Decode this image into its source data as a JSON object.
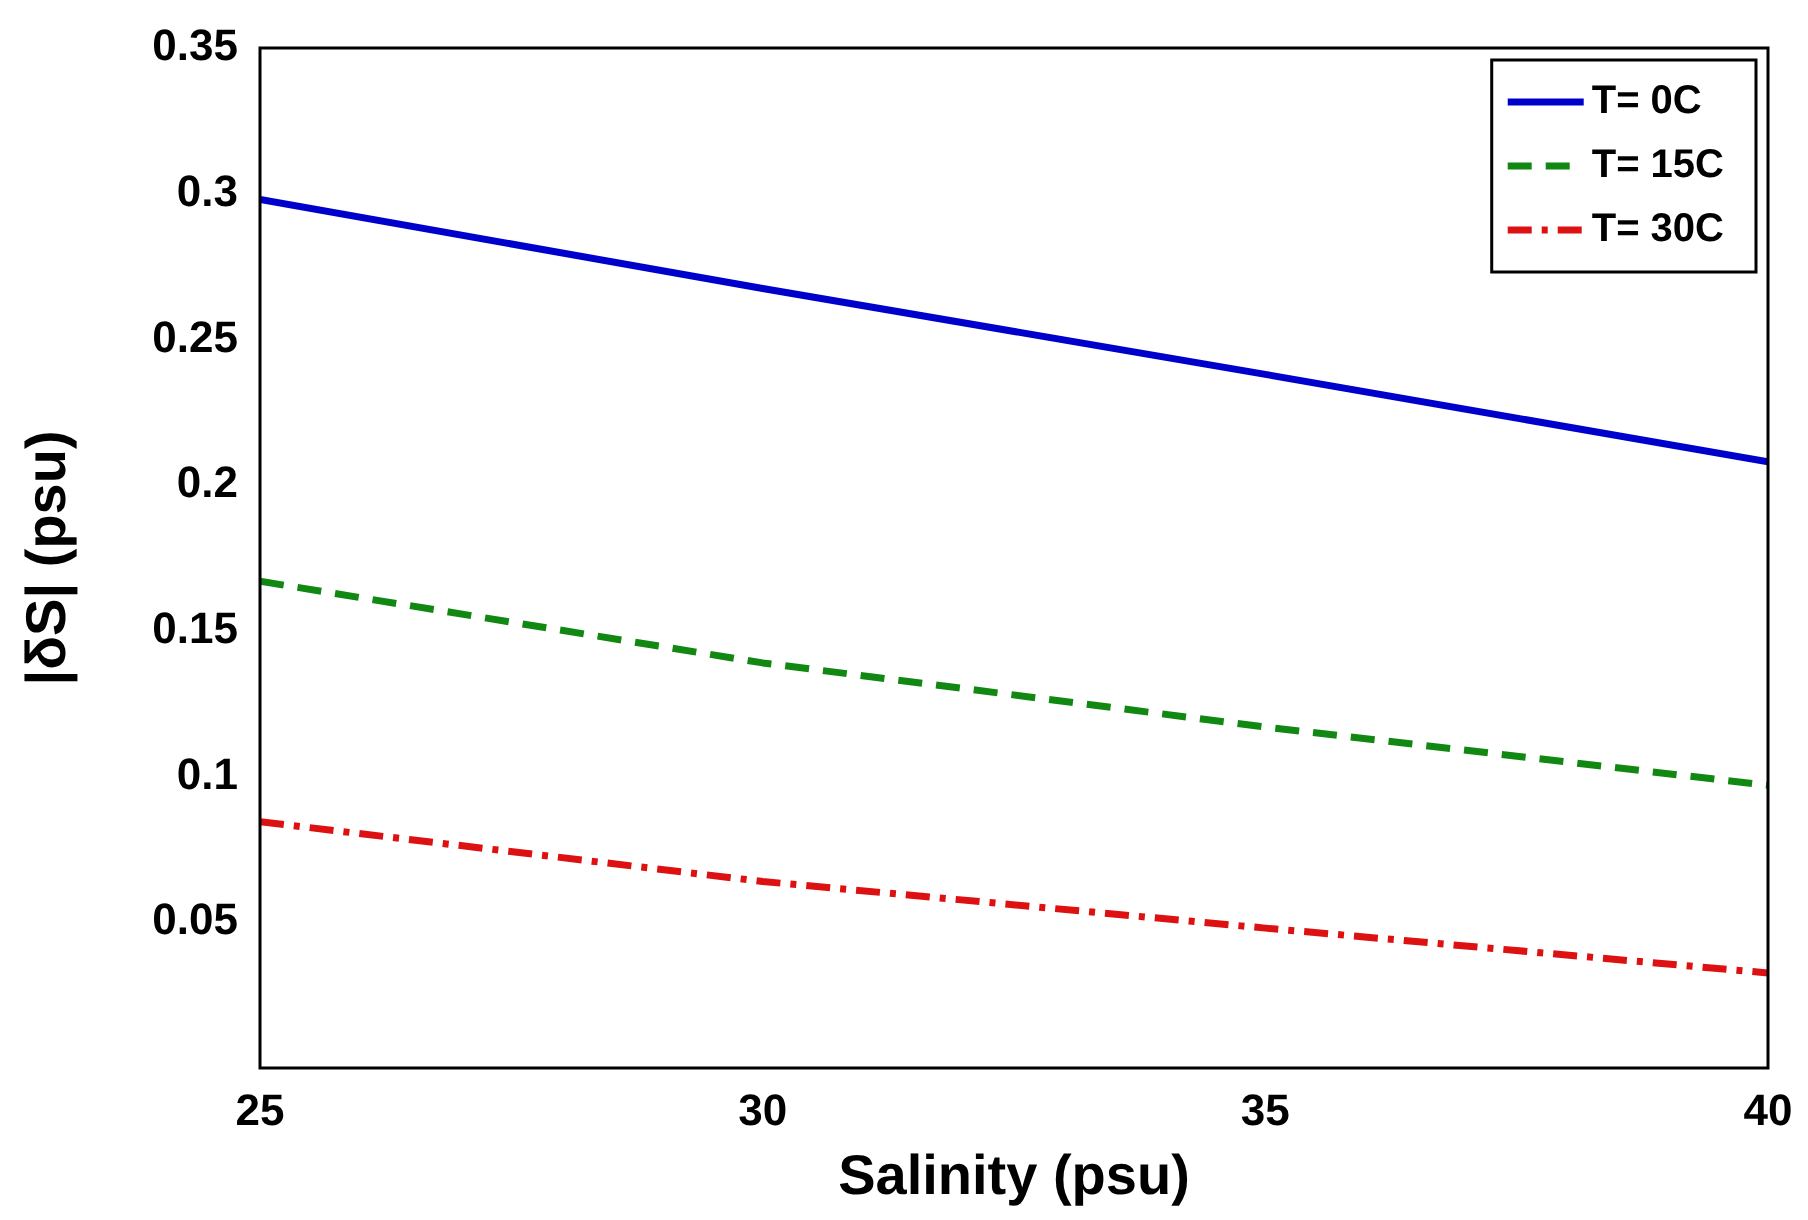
{
  "chart_data": {
    "type": "line",
    "xlabel": "Salinity (psu)",
    "ylabel": "|δS| (psu)",
    "x": [
      25,
      30,
      35,
      40
    ],
    "series": [
      {
        "name": "T= 0C",
        "color": "#0000cc",
        "line_style": "solid",
        "values": [
          0.298,
          0.2675,
          0.238,
          0.208
        ]
      },
      {
        "name": "T= 15C",
        "color": "#118811",
        "line_style": "dashed",
        "values": [
          0.167,
          0.139,
          0.117,
          0.097
        ]
      },
      {
        "name": "T= 30C",
        "color": "#dd1111",
        "line_style": "dashdot",
        "values": [
          0.0845,
          0.064,
          0.048,
          0.0326
        ]
      }
    ],
    "xlim": [
      25,
      40
    ],
    "xticks": [
      25,
      30,
      35,
      40
    ],
    "ylim": [
      0,
      0.35
    ],
    "yticks": [
      0.05,
      0.1,
      0.15,
      0.2,
      0.25,
      0.3,
      0.35
    ],
    "grid": false,
    "legend": "top right",
    "marker": "none"
  }
}
